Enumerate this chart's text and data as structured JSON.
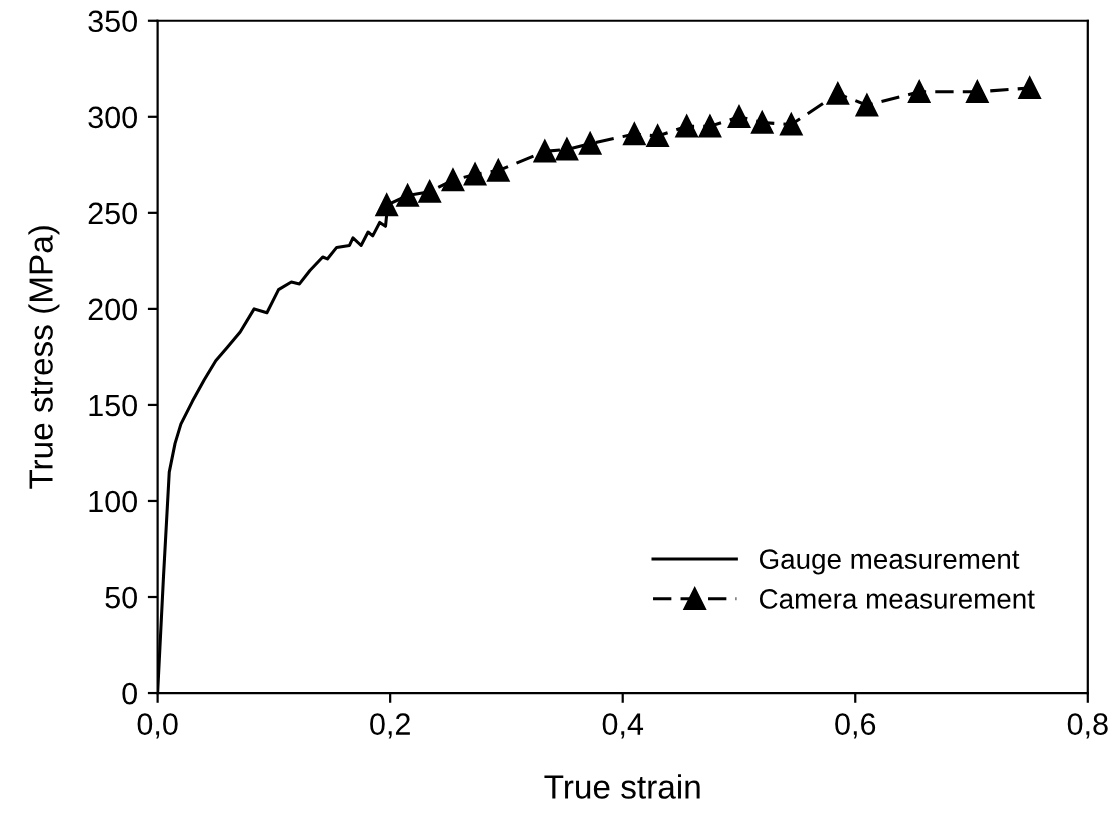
{
  "chart_data": {
    "type": "line",
    "xlabel": "True strain",
    "ylabel": "True stress (MPa)",
    "xlim": [
      0,
      0.8
    ],
    "ylim": [
      0,
      350
    ],
    "xticks": [
      {
        "value": 0,
        "label": "0,0"
      },
      {
        "value": 0.2,
        "label": "0,2"
      },
      {
        "value": 0.4,
        "label": "0,4"
      },
      {
        "value": 0.6,
        "label": "0,6"
      },
      {
        "value": 0.8,
        "label": "0,8"
      }
    ],
    "yticks": [
      0,
      50,
      100,
      150,
      200,
      250,
      300,
      350
    ],
    "grid": false,
    "legend": "bottom right",
    "series": [
      {
        "name": "Gauge measurement",
        "color": "#000000",
        "marker": "none",
        "line_style": "solid",
        "x": [
          0,
          0.005,
          0.01,
          0.015,
          0.02,
          0.03,
          0.04,
          0.05,
          0.06,
          0.071,
          0.083,
          0.094,
          0.104,
          0.115,
          0.122,
          0.131,
          0.142,
          0.146,
          0.154,
          0.165,
          0.168,
          0.175,
          0.181,
          0.185,
          0.191,
          0.196,
          0.198
        ],
        "values": [
          0,
          60,
          115,
          130,
          140,
          152,
          163,
          173,
          180,
          188,
          200,
          198,
          210,
          214,
          213,
          220,
          227,
          226,
          232,
          233,
          237,
          233,
          240,
          238,
          245,
          243,
          255
        ]
      },
      {
        "name": "Camera measurement",
        "color": "#000000",
        "marker": "triangle",
        "line_style": "dashed",
        "x": [
          0.197,
          0.215,
          0.234,
          0.254,
          0.273,
          0.293,
          0.333,
          0.352,
          0.372,
          0.41,
          0.43,
          0.455,
          0.475,
          0.5,
          0.52,
          0.545,
          0.585,
          0.61,
          0.655,
          0.705,
          0.75
        ],
        "values": [
          254,
          259,
          261,
          267,
          270,
          272,
          282,
          283,
          286,
          291,
          290,
          295,
          295,
          300,
          297,
          296,
          312,
          306,
          313,
          313,
          315
        ]
      }
    ]
  }
}
